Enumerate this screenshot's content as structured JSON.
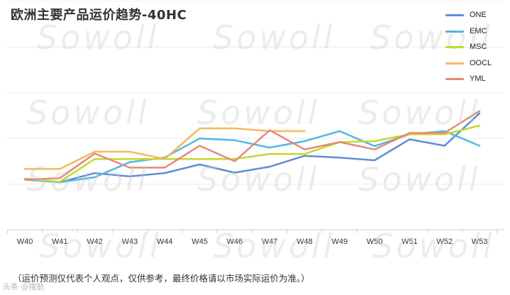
{
  "title": "欧洲主要产品运价趋势-40HC",
  "note": "（运价预测仅代表个人观点，仅供参考，最终价格请以市场实际运价为准。）",
  "brand": "头条 @搜航",
  "watermark": "Sowoll",
  "chart_data": {
    "type": "line",
    "title": "欧洲主要产品运价趋势-40HC",
    "categories": [
      "W40",
      "W41",
      "W42",
      "W43",
      "W44",
      "W45",
      "W46",
      "W47",
      "W48",
      "W49",
      "W50",
      "W51",
      "W52",
      "W53"
    ],
    "ylim": [
      0,
      500
    ],
    "grid": true,
    "legend_position": "top-right",
    "series": [
      {
        "name": "ONE",
        "color": "#5b8fd6",
        "values": [
          110,
          104,
          124,
          117,
          124,
          143,
          125,
          138,
          162,
          158,
          152,
          198,
          184,
          255
        ]
      },
      {
        "name": "EMC",
        "color": "#55b6e0",
        "values": [
          110,
          104,
          115,
          148,
          158,
          200,
          196,
          180,
          194,
          216,
          183,
          209,
          216,
          184
        ]
      },
      {
        "name": "MSC",
        "color": "#c3d92a",
        "values": [
          112,
          105,
          155,
          155,
          155,
          155,
          155,
          166,
          166,
          192,
          194,
          209,
          209,
          228
        ]
      },
      {
        "name": "OOCL",
        "color": "#f5b85e",
        "values": [
          133,
          133,
          171,
          171,
          155,
          222,
          222,
          216,
          216,
          null,
          null,
          null,
          null,
          null
        ]
      },
      {
        "name": "YML",
        "color": "#e8877a",
        "values": [
          110,
          113,
          167,
          136,
          136,
          184,
          150,
          218,
          176,
          192,
          176,
          212,
          212,
          260
        ]
      }
    ]
  }
}
